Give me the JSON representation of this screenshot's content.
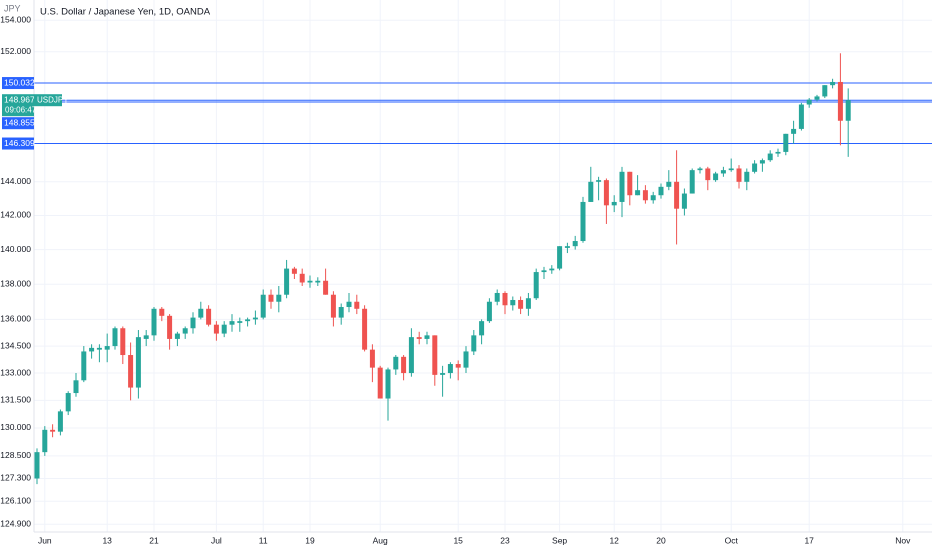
{
  "chart_data": {
    "type": "candlestick",
    "title": "U.S. Dollar / Japanese Yen, 1D, OANDA",
    "currency": "JPY",
    "symbol": "USDJPY",
    "countdown": "09:06:47",
    "log_scale": true,
    "grid": true,
    "up_color": "#26a69a",
    "down_color": "#ef5350",
    "line_color": "#2962ff",
    "ylim": [
      124.5,
      155.3
    ],
    "yticks": [
      {
        "value": 154,
        "label": "154.000"
      },
      {
        "value": 152,
        "label": "152.000"
      },
      {
        "value": 144,
        "label": "144.000"
      },
      {
        "value": 142,
        "label": "142.000"
      },
      {
        "value": 140,
        "label": "140.000"
      },
      {
        "value": 138,
        "label": "138.000"
      },
      {
        "value": 136,
        "label": "136.000"
      },
      {
        "value": 134.5,
        "label": "134.500"
      },
      {
        "value": 133,
        "label": "133.000"
      },
      {
        "value": 131.5,
        "label": "131.500"
      },
      {
        "value": 130,
        "label": "130.000"
      },
      {
        "value": 128.5,
        "label": "128.500"
      },
      {
        "value": 127.3,
        "label": "127.300"
      },
      {
        "value": 126.1,
        "label": "126.100"
      },
      {
        "value": 124.9,
        "label": "124.900"
      }
    ],
    "price_lines": [
      150.032,
      148.855,
      146.309
    ],
    "categories": [
      null,
      "Jun",
      null,
      null,
      null,
      null,
      null,
      null,
      null,
      "13",
      null,
      null,
      null,
      null,
      null,
      "21",
      null,
      null,
      null,
      null,
      null,
      null,
      null,
      "Jul",
      null,
      null,
      null,
      null,
      null,
      "11",
      null,
      null,
      null,
      null,
      null,
      "19",
      null,
      null,
      null,
      null,
      null,
      null,
      null,
      null,
      "Aug",
      null,
      null,
      null,
      null,
      null,
      null,
      null,
      null,
      null,
      "15",
      null,
      null,
      null,
      null,
      null,
      "23",
      null,
      null,
      null,
      null,
      null,
      null,
      "Sep",
      null,
      null,
      null,
      null,
      null,
      null,
      "12",
      null,
      null,
      null,
      null,
      null,
      "20",
      null,
      null,
      null,
      null,
      null,
      null,
      null,
      null,
      "Oct",
      null,
      null,
      null,
      null,
      null,
      null,
      null,
      null,
      null,
      "17",
      null,
      null,
      null,
      null,
      null,
      null,
      null,
      null,
      null,
      null,
      null,
      "Nov"
    ],
    "open": [
      127.3,
      128.7,
      129.9,
      129.8,
      130.9,
      131.9,
      132.6,
      134.2,
      134.3,
      134.3,
      134.5,
      135.5,
      134.0,
      132.2,
      134.9,
      135.1,
      136.6,
      136.2,
      134.9,
      135.2,
      135.5,
      136.1,
      136.6,
      135.7,
      135.2,
      135.7,
      135.8,
      135.9,
      136.0,
      136.1,
      137.4,
      137.0,
      137.4,
      138.9,
      138.6,
      138.1,
      138.1,
      138.2,
      137.4,
      136.1,
      136.7,
      137.0,
      136.6,
      134.3,
      133.3,
      131.6,
      133.2,
      133.9,
      133.0,
      135.0,
      134.9,
      135.1,
      132.9,
      133.0,
      133.5,
      133.3,
      134.2,
      135.1,
      135.9,
      137.0,
      137.5,
      136.8,
      137.1,
      136.6,
      137.2,
      138.7,
      138.8,
      138.9,
      140.1,
      140.2,
      140.5,
      142.8,
      144.0,
      144.1,
      142.6,
      142.8,
      144.6,
      143.2,
      143.5,
      142.9,
      143.2,
      143.7,
      144.0,
      142.4,
      143.3,
      144.7,
      144.8,
      144.1,
      144.5,
      144.7,
      144.8,
      144.0,
      144.6,
      145.1,
      145.3,
      145.7,
      145.8,
      146.9,
      147.2,
      148.7,
      149.0,
      149.2,
      149.9,
      150.1,
      147.7,
      null,
      null,
      null,
      null,
      null,
      null,
      null
    ],
    "high": [
      128.9,
      130.1,
      130.2,
      131.0,
      132.0,
      133.0,
      134.5,
      134.6,
      134.6,
      135.2,
      135.6,
      135.6,
      134.7,
      135.4,
      135.4,
      136.7,
      136.7,
      136.3,
      135.3,
      135.6,
      136.4,
      137.0,
      136.8,
      135.9,
      135.9,
      136.3,
      136.1,
      136.1,
      136.5,
      137.7,
      137.7,
      137.9,
      139.4,
      139.0,
      138.9,
      138.5,
      138.4,
      138.9,
      137.6,
      136.9,
      137.5,
      137.4,
      136.8,
      134.6,
      133.4,
      133.3,
      134.0,
      134.0,
      135.5,
      135.3,
      135.3,
      135.1,
      133.4,
      133.6,
      133.7,
      134.5,
      135.4,
      136.0,
      137.2,
      137.7,
      137.6,
      137.3,
      137.3,
      137.5,
      138.9,
      139.0,
      139.1,
      140.2,
      140.4,
      140.8,
      143.1,
      144.9,
      144.3,
      144.2,
      143.2,
      144.9,
      144.6,
      144.4,
      143.8,
      143.4,
      143.9,
      144.7,
      145.9,
      143.6,
      144.8,
      144.9,
      144.9,
      144.6,
      144.9,
      145.4,
      145.0,
      144.8,
      145.3,
      145.4,
      145.9,
      146.0,
      146.9,
      147.7,
      148.8,
      149.1,
      149.3,
      149.9,
      150.3,
      151.9,
      149.7,
      null,
      null,
      null,
      null,
      null,
      null,
      null
    ],
    "low": [
      127.0,
      128.5,
      129.5,
      129.6,
      130.7,
      131.7,
      132.5,
      133.8,
      133.6,
      133.6,
      134.3,
      133.5,
      131.5,
      131.6,
      134.5,
      134.8,
      135.9,
      134.3,
      134.5,
      134.9,
      135.2,
      136.0,
      135.6,
      134.8,
      135.0,
      135.3,
      135.3,
      135.6,
      135.7,
      136.0,
      136.6,
      136.4,
      137.2,
      138.3,
      137.9,
      137.8,
      137.9,
      137.4,
      135.6,
      135.7,
      136.4,
      136.3,
      134.2,
      132.5,
      131.6,
      130.4,
      132.9,
      132.6,
      132.8,
      134.6,
      134.6,
      132.3,
      131.7,
      132.7,
      132.6,
      133.0,
      134.0,
      134.6,
      135.8,
      136.8,
      136.3,
      136.5,
      136.3,
      136.2,
      137.1,
      138.3,
      138.6,
      138.8,
      139.8,
      140.0,
      140.4,
      142.8,
      142.9,
      141.5,
      142.2,
      141.9,
      142.6,
      143.2,
      142.7,
      142.7,
      143.0,
      143.5,
      140.3,
      142.0,
      143.3,
      144.5,
      143.5,
      144.0,
      144.3,
      144.6,
      143.6,
      143.5,
      144.5,
      144.6,
      145.2,
      145.5,
      145.6,
      146.3,
      147.1,
      148.5,
      148.9,
      149.1,
      149.7,
      146.2,
      145.5,
      null,
      null,
      null,
      null,
      null,
      null,
      null
    ],
    "close": [
      128.7,
      129.9,
      129.8,
      130.9,
      131.9,
      132.6,
      134.2,
      134.4,
      134.4,
      134.5,
      135.5,
      134.0,
      132.2,
      135.0,
      135.1,
      136.6,
      136.2,
      134.9,
      135.2,
      135.5,
      136.1,
      136.6,
      135.7,
      135.2,
      135.7,
      135.9,
      135.9,
      136.0,
      136.1,
      137.4,
      137.0,
      137.4,
      138.9,
      138.6,
      138.1,
      138.2,
      138.2,
      137.4,
      136.1,
      136.7,
      137.0,
      136.6,
      134.3,
      133.3,
      131.6,
      133.2,
      133.9,
      133.0,
      135.0,
      134.9,
      135.1,
      132.9,
      133.0,
      133.5,
      133.3,
      134.2,
      135.1,
      135.9,
      137.0,
      137.5,
      136.8,
      137.1,
      136.6,
      137.2,
      138.7,
      138.8,
      138.9,
      140.2,
      140.2,
      140.5,
      142.8,
      144.0,
      144.1,
      142.6,
      142.8,
      144.6,
      143.2,
      143.5,
      142.9,
      143.2,
      143.7,
      144.0,
      142.4,
      143.3,
      144.7,
      144.8,
      144.1,
      144.5,
      144.7,
      144.8,
      144.0,
      144.6,
      145.1,
      145.3,
      145.7,
      145.8,
      146.9,
      147.2,
      148.7,
      149.0,
      149.2,
      149.9,
      150.1,
      147.7,
      148.967,
      null,
      null,
      null,
      null,
      null,
      null,
      null
    ]
  }
}
